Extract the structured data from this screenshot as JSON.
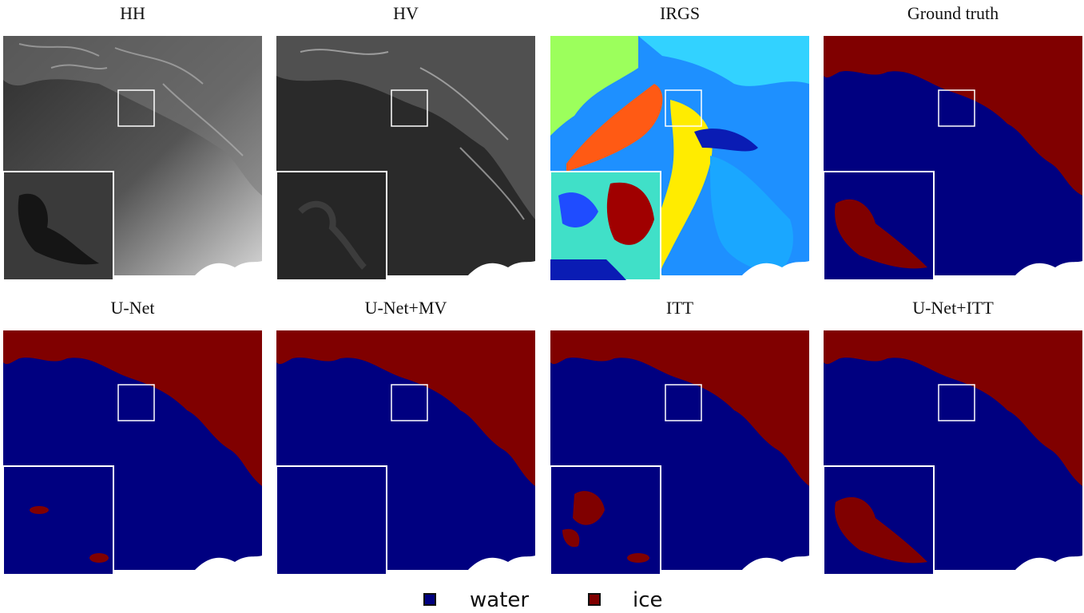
{
  "figure": {
    "panels": [
      {
        "id": "hh",
        "title": "HH",
        "kind": "sar"
      },
      {
        "id": "hv",
        "title": "HV",
        "kind": "sar"
      },
      {
        "id": "irgs",
        "title": "IRGS",
        "kind": "segmentation"
      },
      {
        "id": "gt",
        "title": "Ground truth",
        "kind": "label-map"
      },
      {
        "id": "unet",
        "title": "U-Net",
        "kind": "label-map"
      },
      {
        "id": "unet-mv",
        "title": "U-Net+MV",
        "kind": "label-map"
      },
      {
        "id": "itt",
        "title": "ITT",
        "kind": "label-map"
      },
      {
        "id": "unet-itt",
        "title": "U-Net+ITT",
        "kind": "label-map"
      }
    ],
    "legend": {
      "items": [
        {
          "label": "water",
          "color": "#000080"
        },
        {
          "label": "ice",
          "color": "#800000"
        }
      ]
    }
  },
  "colors": {
    "water": "#000080",
    "ice": "#800000",
    "inset_border": "#ffffff"
  }
}
